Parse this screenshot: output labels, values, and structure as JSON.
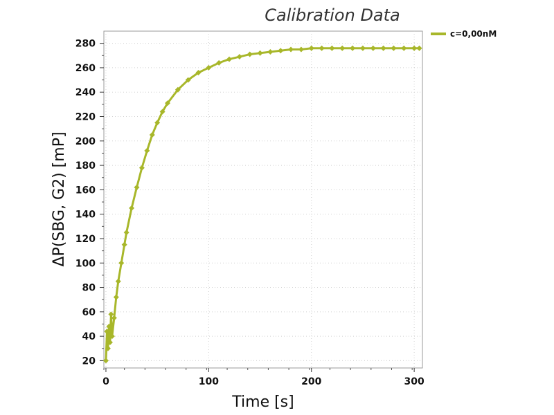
{
  "chart_data": {
    "type": "line",
    "title": "Calibration Data",
    "xlabel": "Time [s]",
    "ylabel": "ΔP(SBG, G2) [mP]",
    "xlim": [
      -2,
      308
    ],
    "ylim": [
      14,
      290
    ],
    "x_ticks": [
      0,
      100,
      200,
      300
    ],
    "y_ticks": [
      20,
      40,
      60,
      80,
      100,
      120,
      140,
      160,
      180,
      200,
      220,
      240,
      260,
      280
    ],
    "x_tick_labels": [
      "0",
      "100",
      "200",
      "300"
    ],
    "y_tick_labels": [
      "20",
      "40",
      "60",
      "80",
      "100",
      "120",
      "140",
      "160",
      "180",
      "200",
      "220",
      "240",
      "260",
      "280"
    ],
    "grid": true,
    "legend_position": "top-right",
    "series": [
      {
        "name": "c=0,00nM",
        "color": "#a8b72a",
        "x": [
          0,
          1,
          2,
          3,
          4,
          5,
          6,
          8,
          10,
          12,
          15,
          18,
          20,
          25,
          30,
          35,
          40,
          45,
          50,
          55,
          60,
          70,
          80,
          90,
          100,
          110,
          120,
          130,
          140,
          150,
          160,
          170,
          180,
          190,
          200,
          210,
          220,
          230,
          240,
          250,
          260,
          270,
          280,
          290,
          300,
          305
        ],
        "values": [
          20,
          44,
          30,
          48,
          35,
          58,
          40,
          55,
          72,
          85,
          100,
          115,
          125,
          145,
          162,
          178,
          192,
          205,
          215,
          224,
          231,
          242,
          250,
          256,
          260,
          264,
          267,
          269,
          271,
          272,
          273,
          274,
          275,
          275,
          276,
          276,
          276,
          276,
          276,
          276,
          276,
          276,
          276,
          276,
          276,
          276
        ]
      }
    ]
  }
}
